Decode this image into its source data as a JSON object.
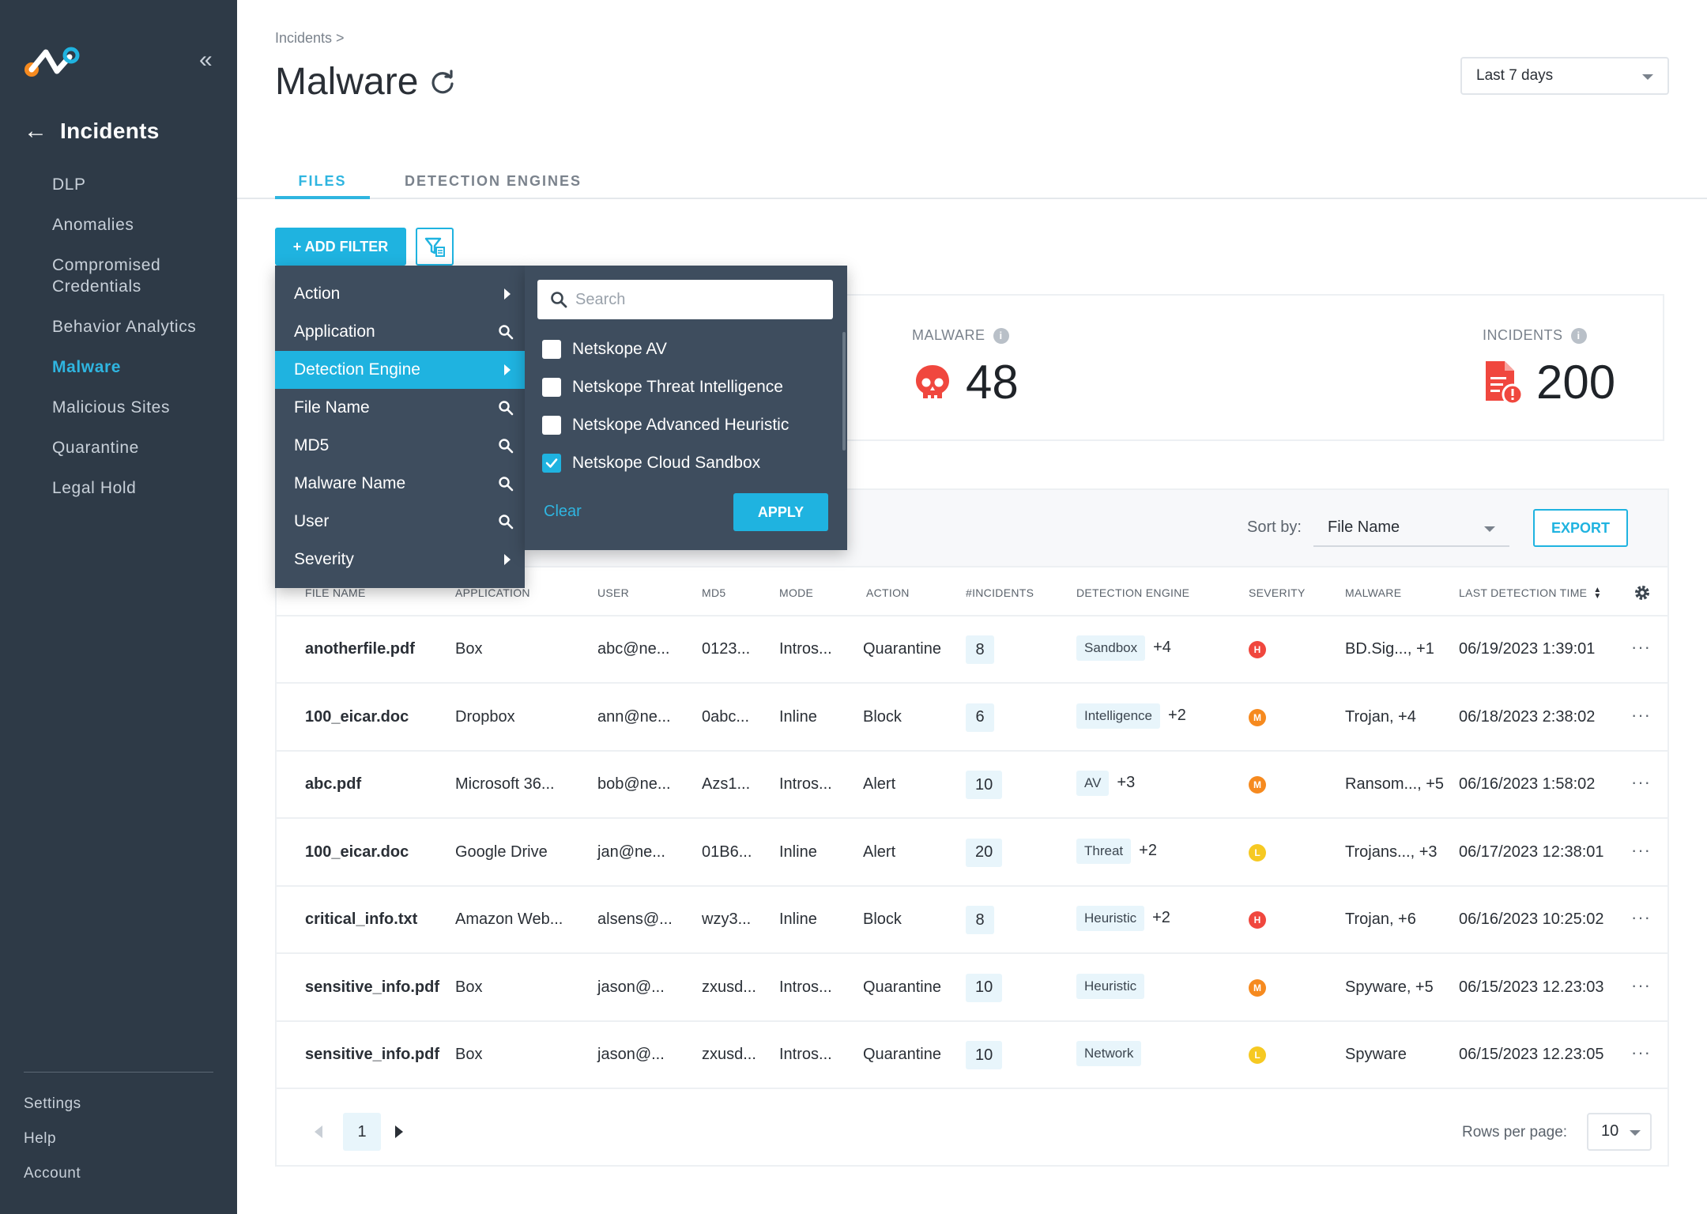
{
  "sidebar": {
    "section_title": "Incidents",
    "items": [
      {
        "label": "DLP"
      },
      {
        "label": "Anomalies"
      },
      {
        "label": "Compromised Credentials"
      },
      {
        "label": "Behavior Analytics"
      },
      {
        "label": "Malware",
        "active": true
      },
      {
        "label": "Malicious Sites"
      },
      {
        "label": "Quarantine"
      },
      {
        "label": "Legal Hold"
      }
    ],
    "bottom": [
      {
        "label": "Settings"
      },
      {
        "label": "Help"
      },
      {
        "label": "Account"
      }
    ]
  },
  "header": {
    "breadcrumb": "Incidents >",
    "title": "Malware",
    "date_range": "Last 7 days"
  },
  "tabs": [
    {
      "label": "FILES",
      "active": true
    },
    {
      "label": "DETECTION ENGINES"
    }
  ],
  "filters": {
    "add_label": "+ ADD FILTER",
    "menu": [
      {
        "label": "Action",
        "icon": "chevron-right-icon"
      },
      {
        "label": "Application",
        "icon": "search-icon"
      },
      {
        "label": "Detection Engine",
        "icon": "chevron-right-icon",
        "active": true
      },
      {
        "label": "File Name",
        "icon": "search-icon"
      },
      {
        "label": "MD5",
        "icon": "search-icon"
      },
      {
        "label": "Malware Name",
        "icon": "search-icon"
      },
      {
        "label": "User",
        "icon": "search-icon"
      },
      {
        "label": "Severity",
        "icon": "chevron-right-icon"
      }
    ],
    "submenu": {
      "search_placeholder": "Search",
      "options": [
        {
          "label": "Netskope AV",
          "checked": false
        },
        {
          "label": "Netskope Threat Intelligence",
          "checked": false
        },
        {
          "label": "Netskope Advanced Heuristic",
          "checked": false
        },
        {
          "label": "Netskope Cloud Sandbox",
          "checked": true
        }
      ],
      "clear_label": "Clear",
      "apply_label": "APPLY"
    }
  },
  "stats": {
    "malware": {
      "label": "MALWARE",
      "value": "48"
    },
    "incidents": {
      "label": "INCIDENTS",
      "value": "200"
    }
  },
  "table": {
    "sort_label": "Sort by:",
    "sort_value": "File Name",
    "export_label": "EXPORT",
    "columns": [
      "FILE NAME",
      "APPLICATION",
      "USER",
      "MD5",
      "MODE",
      "ACTION",
      "#INCIDENTS",
      "DETECTION ENGINE",
      "SEVERITY",
      "MALWARE",
      "LAST DETECTION TIME"
    ],
    "rows": [
      {
        "file": "anotherfile.pdf",
        "app": "Box",
        "user": "abc@ne...",
        "md5": "0123...",
        "mode": "Intros...",
        "action": "Quarantine",
        "incidents": "8",
        "engine": "Sandbox",
        "engine_more": "+4",
        "severity": "H",
        "malware": "BD.Sig..., +1",
        "time": "06/19/2023 1:39:01"
      },
      {
        "file": "100_eicar.doc",
        "app": "Dropbox",
        "user": "ann@ne...",
        "md5": "0abc...",
        "mode": "Inline",
        "action": "Block",
        "incidents": "6",
        "engine": "Intelligence",
        "engine_more": "+2",
        "severity": "M",
        "malware": "Trojan, +4",
        "time": "06/18/2023 2:38:02"
      },
      {
        "file": "abc.pdf",
        "app": "Microsoft 36...",
        "user": "bob@ne...",
        "md5": "Azs1...",
        "mode": "Intros...",
        "action": "Alert",
        "incidents": "10",
        "engine": "AV",
        "engine_more": "+3",
        "severity": "M",
        "malware": "Ransom..., +5",
        "time": "06/16/2023 1:58:02"
      },
      {
        "file": "100_eicar.doc",
        "app": "Google Drive",
        "user": "jan@ne...",
        "md5": "01B6...",
        "mode": "Inline",
        "action": "Alert",
        "incidents": "20",
        "engine": "Threat",
        "engine_more": "+2",
        "severity": "L",
        "malware": "Trojans..., +3",
        "time": "06/17/2023 12:38:01"
      },
      {
        "file": "critical_info.txt",
        "app": "Amazon Web...",
        "user": "alsens@...",
        "md5": "wzy3...",
        "mode": "Inline",
        "action": "Block",
        "incidents": "8",
        "engine": "Heuristic",
        "engine_more": "+2",
        "severity": "H",
        "malware": "Trojan, +6",
        "time": "06/16/2023 10:25:02"
      },
      {
        "file": "sensitive_info.pdf",
        "app": "Box",
        "user": "jason@...",
        "md5": "zxusd...",
        "mode": "Intros...",
        "action": "Quarantine",
        "incidents": "10",
        "engine": "Heuristic",
        "engine_more": "",
        "severity": "M",
        "malware": "Spyware, +5",
        "time": "06/15/2023 12.23:03"
      },
      {
        "file": "sensitive_info.pdf",
        "app": "Box",
        "user": "jason@...",
        "md5": "zxusd...",
        "mode": "Intros...",
        "action": "Quarantine",
        "incidents": "10",
        "engine": "Network",
        "engine_more": "",
        "severity": "L",
        "malware": "Spyware",
        "time": "06/15/2023 12.23:05"
      }
    ],
    "more_glyph": "···",
    "page": "1",
    "rows_per_page_label": "Rows per page:",
    "rows_per_page": "10"
  },
  "colors": {
    "accent": "#1fb3e0",
    "sidebar_bg": "#2e3a47",
    "menu_bg": "#3e4d5e",
    "sev_high": "#f0473e",
    "sev_medium": "#f68a1f",
    "sev_low": "#f6c922",
    "danger": "#f0473e"
  }
}
